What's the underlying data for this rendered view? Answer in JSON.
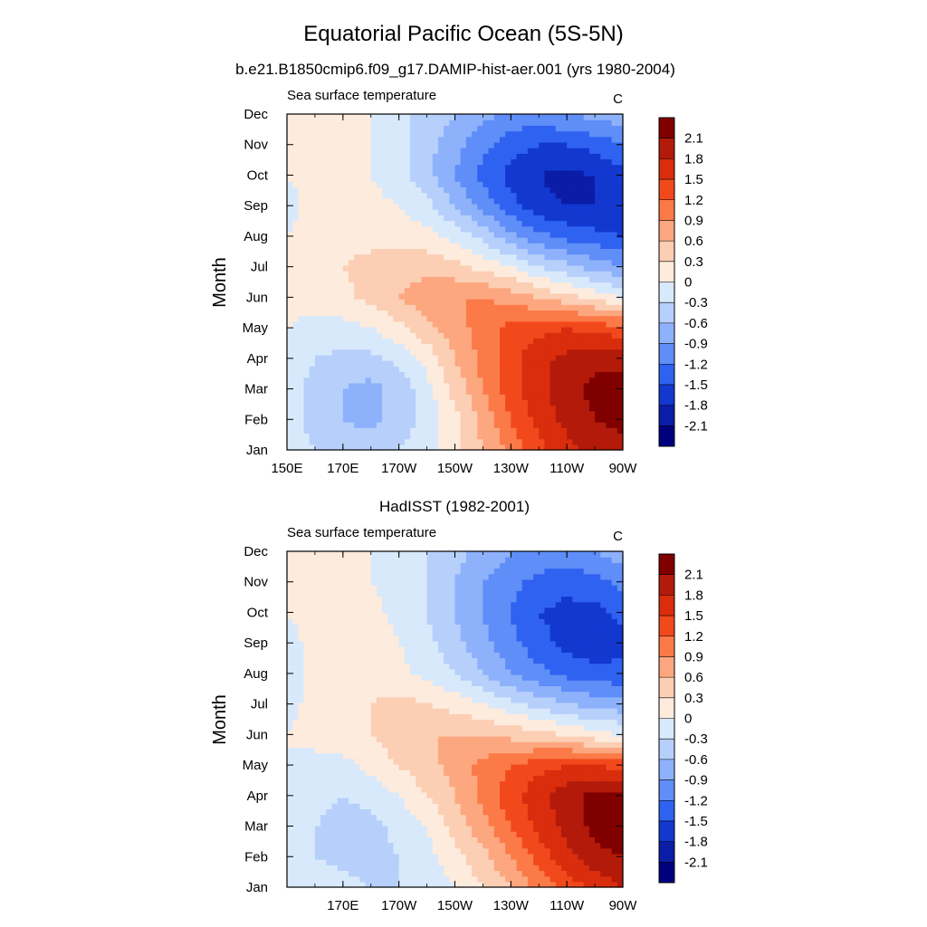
{
  "figure": {
    "title": "Equatorial Pacific Ocean (5S-5N)",
    "subtitle": "b.e21.B1850cmip6.f09_g17.DAMIP-hist-aer.001 (yrs 1980-2004)"
  },
  "colorbar": {
    "levels": [
      2.1,
      1.8,
      1.5,
      1.2,
      0.9,
      0.6,
      0.3,
      0,
      -0.3,
      -0.6,
      -0.9,
      -1.2,
      -1.5,
      -1.8,
      -2.1
    ],
    "level_labels": [
      "2.1",
      "1.8",
      "1.5",
      "1.2",
      "0.9",
      "0.6",
      "0.3",
      "0",
      "-0.3",
      "-0.6",
      "-0.9",
      "-1.2",
      "-1.5",
      "-1.8",
      "-2.1"
    ],
    "colors": [
      "#800000",
      "#b31a0a",
      "#d92d0d",
      "#f2491c",
      "#fb7a48",
      "#fca77f",
      "#fcceb4",
      "#fdebdd",
      "#d8e9fb",
      "#b6d0fb",
      "#8eb1fb",
      "#5f8ef8",
      "#2f62f0",
      "#1238d0",
      "#0b1ca6",
      "#00007f"
    ]
  },
  "chart_data": [
    {
      "type": "heatmap",
      "panel_title": "",
      "left_label": "Sea surface temperature",
      "right_label": "C",
      "ylabel": "Month",
      "x_unit": "longitude (degrees east)",
      "x": [
        150,
        160,
        170,
        180,
        190,
        200,
        210,
        220,
        230,
        240,
        250,
        260,
        270
      ],
      "xtick_values": [
        150,
        170,
        190,
        210,
        230,
        250,
        270
      ],
      "xtick_labels": [
        "150E",
        "170E",
        "170W",
        "150W",
        "130W",
        "110W",
        "90W"
      ],
      "y": [
        "Jan",
        "Feb",
        "Mar",
        "Apr",
        "May",
        "Jun",
        "Jul",
        "Aug",
        "Sep",
        "Oct",
        "Nov",
        "Dec"
      ],
      "ytick_labels": [
        "Jan",
        "Feb",
        "Mar",
        "Apr",
        "May",
        "Jun",
        "Jul",
        "Aug",
        "Sep",
        "Oct",
        "Nov",
        "Dec"
      ],
      "values": [
        [
          -0.1,
          -0.3,
          -0.4,
          -0.4,
          -0.3,
          -0.1,
          0.2,
          0.6,
          1.0,
          1.4,
          1.7,
          1.9,
          2.0
        ],
        [
          -0.2,
          -0.4,
          -0.6,
          -0.7,
          -0.5,
          -0.2,
          0.2,
          0.7,
          1.2,
          1.6,
          1.9,
          2.1,
          2.2
        ],
        [
          -0.2,
          -0.4,
          -0.6,
          -0.7,
          -0.5,
          -0.1,
          0.4,
          0.9,
          1.4,
          1.7,
          2.0,
          2.2,
          2.3
        ],
        [
          -0.1,
          -0.3,
          -0.4,
          -0.4,
          -0.2,
          0.1,
          0.6,
          1.0,
          1.4,
          1.7,
          1.9,
          2.0,
          2.0
        ],
        [
          0.0,
          -0.1,
          -0.1,
          0.0,
          0.2,
          0.5,
          0.8,
          1.0,
          1.3,
          1.4,
          1.5,
          1.4,
          1.3
        ],
        [
          0.1,
          0.1,
          0.2,
          0.4,
          0.6,
          0.8,
          0.9,
          0.9,
          0.8,
          0.6,
          0.4,
          0.2,
          0.0
        ],
        [
          0.1,
          0.2,
          0.3,
          0.4,
          0.5,
          0.5,
          0.4,
          0.2,
          0.0,
          -0.3,
          -0.5,
          -0.7,
          -0.9
        ],
        [
          0.0,
          0.1,
          0.2,
          0.2,
          0.2,
          0.1,
          -0.1,
          -0.4,
          -0.8,
          -1.1,
          -1.3,
          -1.4,
          -1.5
        ],
        [
          -0.1,
          0.1,
          0.1,
          0.1,
          0.0,
          -0.2,
          -0.6,
          -1.0,
          -1.4,
          -1.7,
          -1.8,
          -1.8,
          -1.8
        ],
        [
          0.0,
          0.1,
          0.1,
          0.0,
          -0.2,
          -0.5,
          -0.9,
          -1.3,
          -1.6,
          -1.8,
          -1.9,
          -1.8,
          -1.6
        ],
        [
          0.0,
          0.1,
          0.1,
          0.0,
          -0.2,
          -0.5,
          -0.8,
          -1.1,
          -1.4,
          -1.5,
          -1.5,
          -1.4,
          -1.2
        ],
        [
          0.0,
          0.1,
          0.1,
          0.0,
          -0.2,
          -0.4,
          -0.6,
          -0.8,
          -1.0,
          -1.0,
          -0.9,
          -0.8,
          -0.7
        ]
      ]
    },
    {
      "type": "heatmap",
      "panel_title": "HadISST (1982-2001)",
      "left_label": "Sea surface temperature",
      "right_label": "C",
      "ylabel": "Month",
      "x_unit": "longitude (degrees east)",
      "x": [
        150,
        160,
        170,
        180,
        190,
        200,
        210,
        220,
        230,
        240,
        250,
        260,
        270
      ],
      "xtick_values": [
        170,
        190,
        210,
        230,
        250,
        270
      ],
      "xtick_labels": [
        "170E",
        "170W",
        "150W",
        "130W",
        "110W",
        "90W"
      ],
      "y": [
        "Jan",
        "Feb",
        "Mar",
        "Apr",
        "May",
        "Jun",
        "Jul",
        "Aug",
        "Sep",
        "Oct",
        "Nov",
        "Dec"
      ],
      "ytick_labels": [
        "Jan",
        "Feb",
        "Mar",
        "Apr",
        "May",
        "Jun",
        "Jul",
        "Aug",
        "Sep",
        "Oct",
        "Nov",
        "Dec"
      ],
      "values": [
        [
          0.0,
          -0.1,
          -0.2,
          -0.3,
          -0.3,
          -0.2,
          0.0,
          0.3,
          0.6,
          1.0,
          1.3,
          1.6,
          1.8
        ],
        [
          -0.1,
          -0.3,
          -0.4,
          -0.4,
          -0.3,
          -0.1,
          0.2,
          0.5,
          0.9,
          1.3,
          1.7,
          2.0,
          2.1
        ],
        [
          -0.1,
          -0.3,
          -0.4,
          -0.4,
          -0.2,
          0.0,
          0.4,
          0.8,
          1.2,
          1.6,
          1.9,
          2.2,
          2.3
        ],
        [
          -0.1,
          -0.2,
          -0.3,
          -0.2,
          0.0,
          0.3,
          0.6,
          1.0,
          1.4,
          1.7,
          2.0,
          2.2,
          2.2
        ],
        [
          0.0,
          -0.1,
          -0.1,
          0.1,
          0.3,
          0.5,
          0.7,
          1.0,
          1.2,
          1.4,
          1.5,
          1.5,
          1.4
        ],
        [
          0.0,
          0.1,
          0.2,
          0.3,
          0.5,
          0.6,
          0.6,
          0.6,
          0.5,
          0.4,
          0.3,
          0.1,
          0.0
        ],
        [
          -0.1,
          0.1,
          0.2,
          0.3,
          0.4,
          0.3,
          0.2,
          0.0,
          -0.2,
          -0.4,
          -0.6,
          -0.7,
          -0.8
        ],
        [
          -0.2,
          0.1,
          0.2,
          0.2,
          0.1,
          -0.1,
          -0.3,
          -0.6,
          -0.9,
          -1.1,
          -1.3,
          -1.4,
          -1.4
        ],
        [
          -0.1,
          0.1,
          0.3,
          0.2,
          0.0,
          -0.2,
          -0.5,
          -0.8,
          -1.1,
          -1.4,
          -1.6,
          -1.7,
          -1.6
        ],
        [
          0.0,
          0.1,
          0.2,
          0.1,
          -0.1,
          -0.3,
          -0.6,
          -0.9,
          -1.2,
          -1.5,
          -1.6,
          -1.6,
          -1.4
        ],
        [
          0.0,
          0.1,
          0.1,
          0.0,
          -0.1,
          -0.3,
          -0.6,
          -0.9,
          -1.1,
          -1.3,
          -1.4,
          -1.3,
          -1.1
        ],
        [
          0.0,
          0.1,
          0.1,
          0.0,
          -0.1,
          -0.3,
          -0.5,
          -0.7,
          -0.9,
          -1.0,
          -1.0,
          -0.9,
          -0.7
        ]
      ]
    }
  ]
}
